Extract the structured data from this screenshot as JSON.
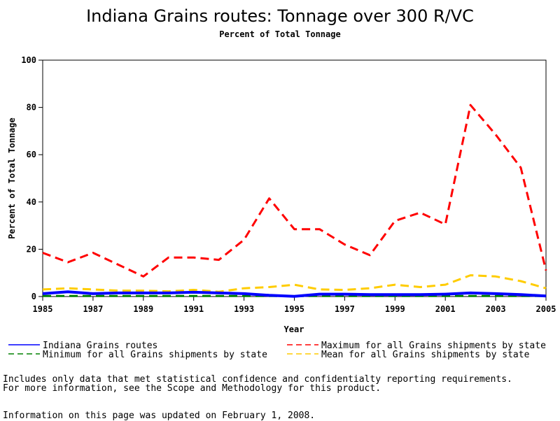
{
  "chart_data": {
    "type": "line",
    "title": "Indiana Grains routes: Tonnage over 300 R/VC",
    "subtitle": "Percent of Total Tonnage",
    "xlabel": "Year",
    "ylabel": "Percent of Total Tonnage",
    "xlim": [
      1985,
      2005
    ],
    "ylim": [
      0,
      100
    ],
    "xticks": [
      "1985",
      "1987",
      "1989",
      "1991",
      "1993",
      "1995",
      "1997",
      "1999",
      "2001",
      "2003",
      "2005"
    ],
    "yticks": [
      "0",
      "20",
      "40",
      "60",
      "80",
      "100"
    ],
    "x": [
      1985,
      1986,
      1987,
      1988,
      1989,
      1990,
      1991,
      1992,
      1993,
      1994,
      1995,
      1996,
      1997,
      1998,
      1999,
      2000,
      2001,
      2002,
      2003,
      2004,
      2005
    ],
    "series": [
      {
        "name": "Indiana Grains routes",
        "color": "#0000ff",
        "style": "solid",
        "values": [
          1.2,
          2.0,
          1.2,
          1.5,
          1.5,
          1.5,
          1.8,
          1.5,
          1.2,
          0.5,
          0.1,
          1.0,
          1.0,
          0.8,
          0.8,
          0.8,
          1.0,
          1.5,
          1.2,
          0.8,
          0.2
        ]
      },
      {
        "name": "Minimum for all Grains shipments by state",
        "color": "#008000",
        "style": "dashed",
        "values": [
          0.2,
          0.2,
          0.2,
          0.2,
          0.2,
          0.2,
          0.2,
          0.2,
          0.2,
          0.2,
          0.2,
          0.2,
          0.2,
          0.2,
          0.2,
          0.2,
          0.2,
          0.2,
          0.2,
          0.2,
          0.2
        ]
      },
      {
        "name": "Maximum for all Grains shipments by state",
        "color": "#ff0000",
        "style": "dashed",
        "values": [
          18.5,
          14.5,
          18.5,
          13.5,
          8.5,
          16.5,
          16.5,
          15.5,
          24.0,
          41.5,
          28.5,
          28.5,
          22.0,
          17.5,
          32.0,
          35.5,
          30.5,
          81.0,
          68.5,
          54.5,
          11.0
        ]
      },
      {
        "name": "Mean for all Grains shipments by state",
        "color": "#ffcc00",
        "style": "dashed",
        "values": [
          3.0,
          3.5,
          3.0,
          2.5,
          2.5,
          2.2,
          2.8,
          2.0,
          3.5,
          4.0,
          5.0,
          3.0,
          2.8,
          3.5,
          5.0,
          4.0,
          5.0,
          9.0,
          8.5,
          6.5,
          3.5
        ]
      }
    ]
  },
  "notes": {
    "line1": "Includes only data that met statistical confidence and confidentialty reporting requirements.",
    "line2": "For more information, see the Scope and Methodology for this product.",
    "updated": "Information on this page was updated on February 1, 2008."
  }
}
